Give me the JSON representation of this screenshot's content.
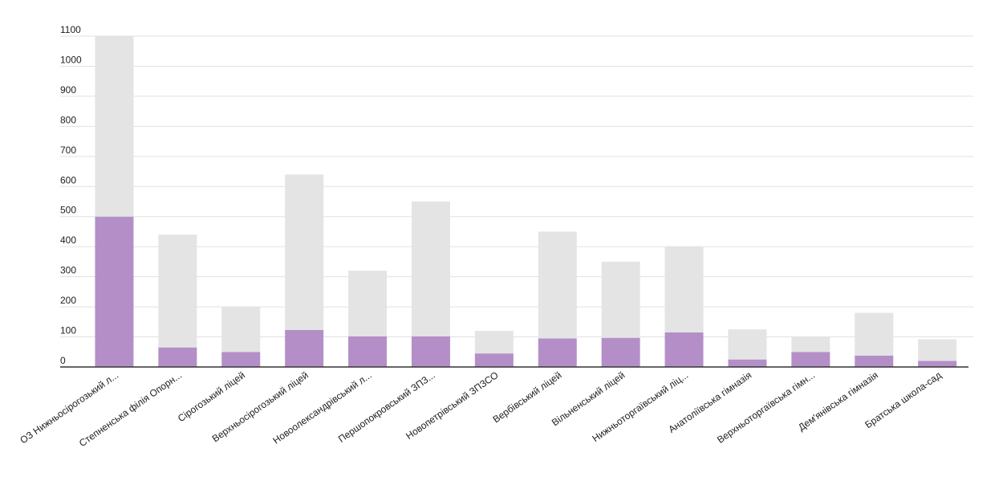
{
  "chart_data": {
    "type": "bar",
    "stacked": true,
    "title": "",
    "xlabel": "",
    "ylabel": "",
    "ylim": [
      0,
      1100
    ],
    "yticks": [
      0,
      100,
      200,
      300,
      400,
      500,
      600,
      700,
      800,
      900,
      1000,
      1100
    ],
    "grid": true,
    "legend": "none",
    "categories": [
      "ОЗ Нижньосірогозький л...",
      "Степненська філія Опорн...",
      "Сірогозький ліцей",
      "Верхньосірогозький ліцей",
      "Новоолександрівський л...",
      "Першопокровський ЗПЗ...",
      "Новопетрівський ЗПЗСО",
      "Вербівський ліцей",
      "Вільненський ліцей",
      "Нижньоторгаївський ліц...",
      "Анатоліївська гімназія",
      "Верхньоторгаївська гімн...",
      "Дем'янівська гімназія",
      "Братська школа-сад"
    ],
    "series": [
      {
        "color": "#b48fc7",
        "values": [
          500,
          65,
          50,
          123,
          102,
          102,
          45,
          95,
          97,
          115,
          25,
          50,
          38,
          20
        ]
      },
      {
        "color": "#e4e4e4",
        "values": [
          600,
          375,
          150,
          517,
          218,
          448,
          75,
          355,
          253,
          285,
          100,
          50,
          142,
          72
        ]
      }
    ],
    "colors": {
      "grid": "#e0e0e0",
      "axis": "#333333",
      "text": "#212121"
    }
  }
}
